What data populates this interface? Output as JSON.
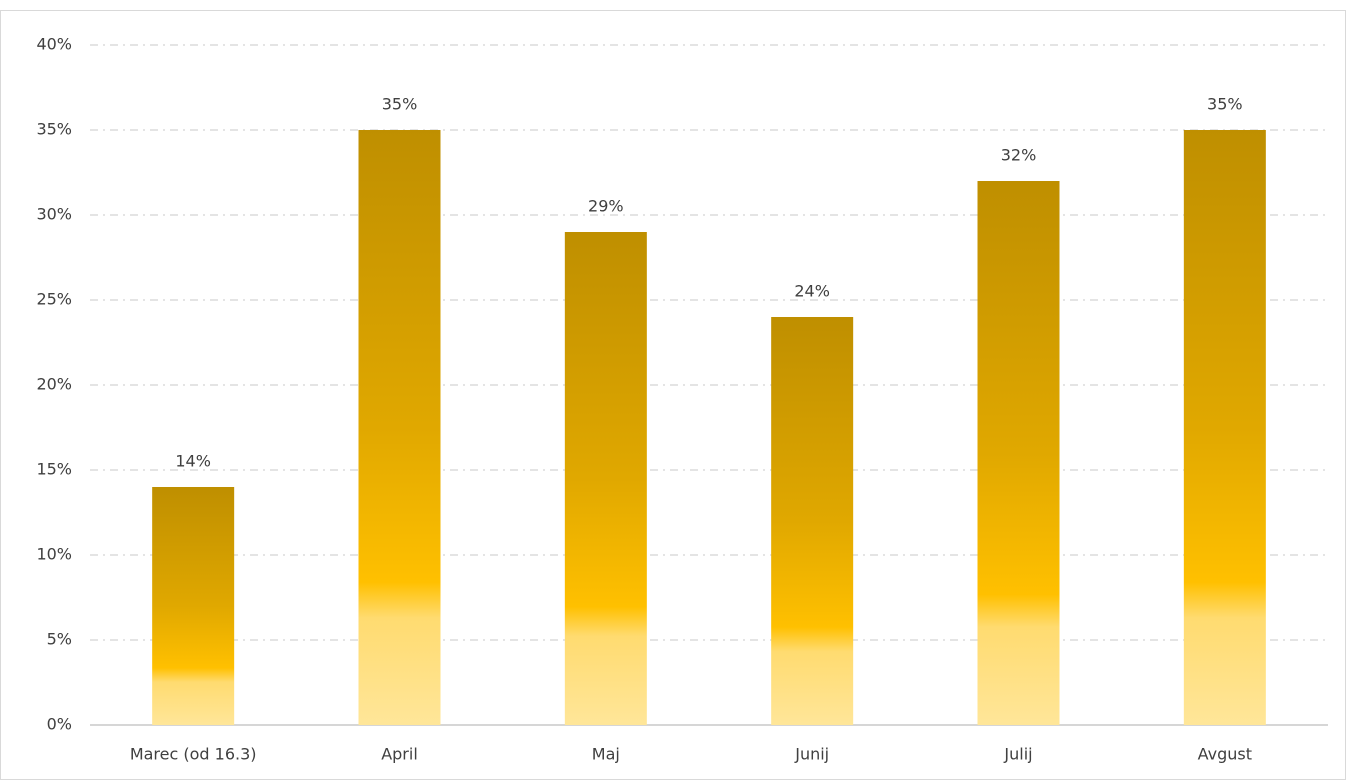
{
  "chart_data": {
    "type": "bar",
    "categories": [
      "Marec (od 16.3)",
      "April",
      "Maj",
      "Junij",
      "Julij",
      "Avgust"
    ],
    "values": [
      14,
      35,
      29,
      24,
      32,
      35
    ],
    "value_labels": [
      "14%",
      "35%",
      "29%",
      "24%",
      "32%",
      "35%"
    ],
    "color": "#ffc000",
    "ylim": [
      0,
      40
    ],
    "yticks": [
      {
        "value": 0,
        "label": "0%"
      },
      {
        "value": 5,
        "label": "5%"
      },
      {
        "value": 10,
        "label": "10%"
      },
      {
        "value": 15,
        "label": "15%"
      },
      {
        "value": 20,
        "label": "20%"
      },
      {
        "value": 25,
        "label": "25%"
      },
      {
        "value": 30,
        "label": "30%"
      },
      {
        "value": 35,
        "label": "35%"
      },
      {
        "value": 40,
        "label": "40%"
      }
    ],
    "grid": true
  }
}
